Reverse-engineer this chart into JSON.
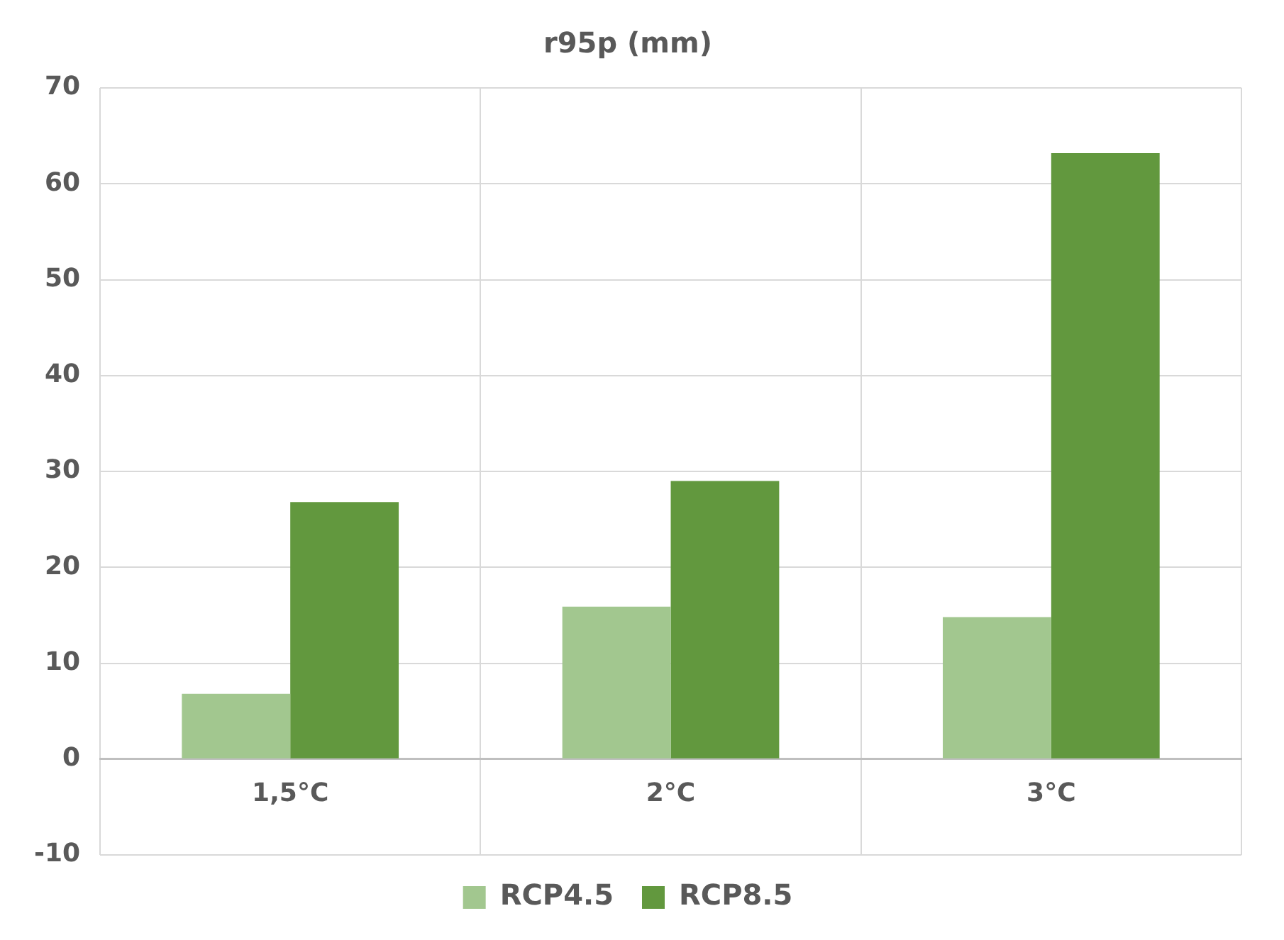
{
  "chart_data": {
    "type": "bar",
    "title": "r95p (mm)",
    "categories": [
      "1,5°C",
      "2°C",
      "3°C"
    ],
    "series": [
      {
        "name": "RCP4.5",
        "color": "#a2c78f",
        "values": [
          6.8,
          15.9,
          14.8
        ]
      },
      {
        "name": "RCP8.5",
        "color": "#62983e",
        "values": [
          26.8,
          29.0,
          63.2
        ]
      }
    ],
    "ylim": [
      -10,
      70
    ],
    "yticks": [
      -10,
      0,
      10,
      20,
      30,
      40,
      50,
      60,
      70
    ],
    "grid": true,
    "legend": "bottom"
  }
}
